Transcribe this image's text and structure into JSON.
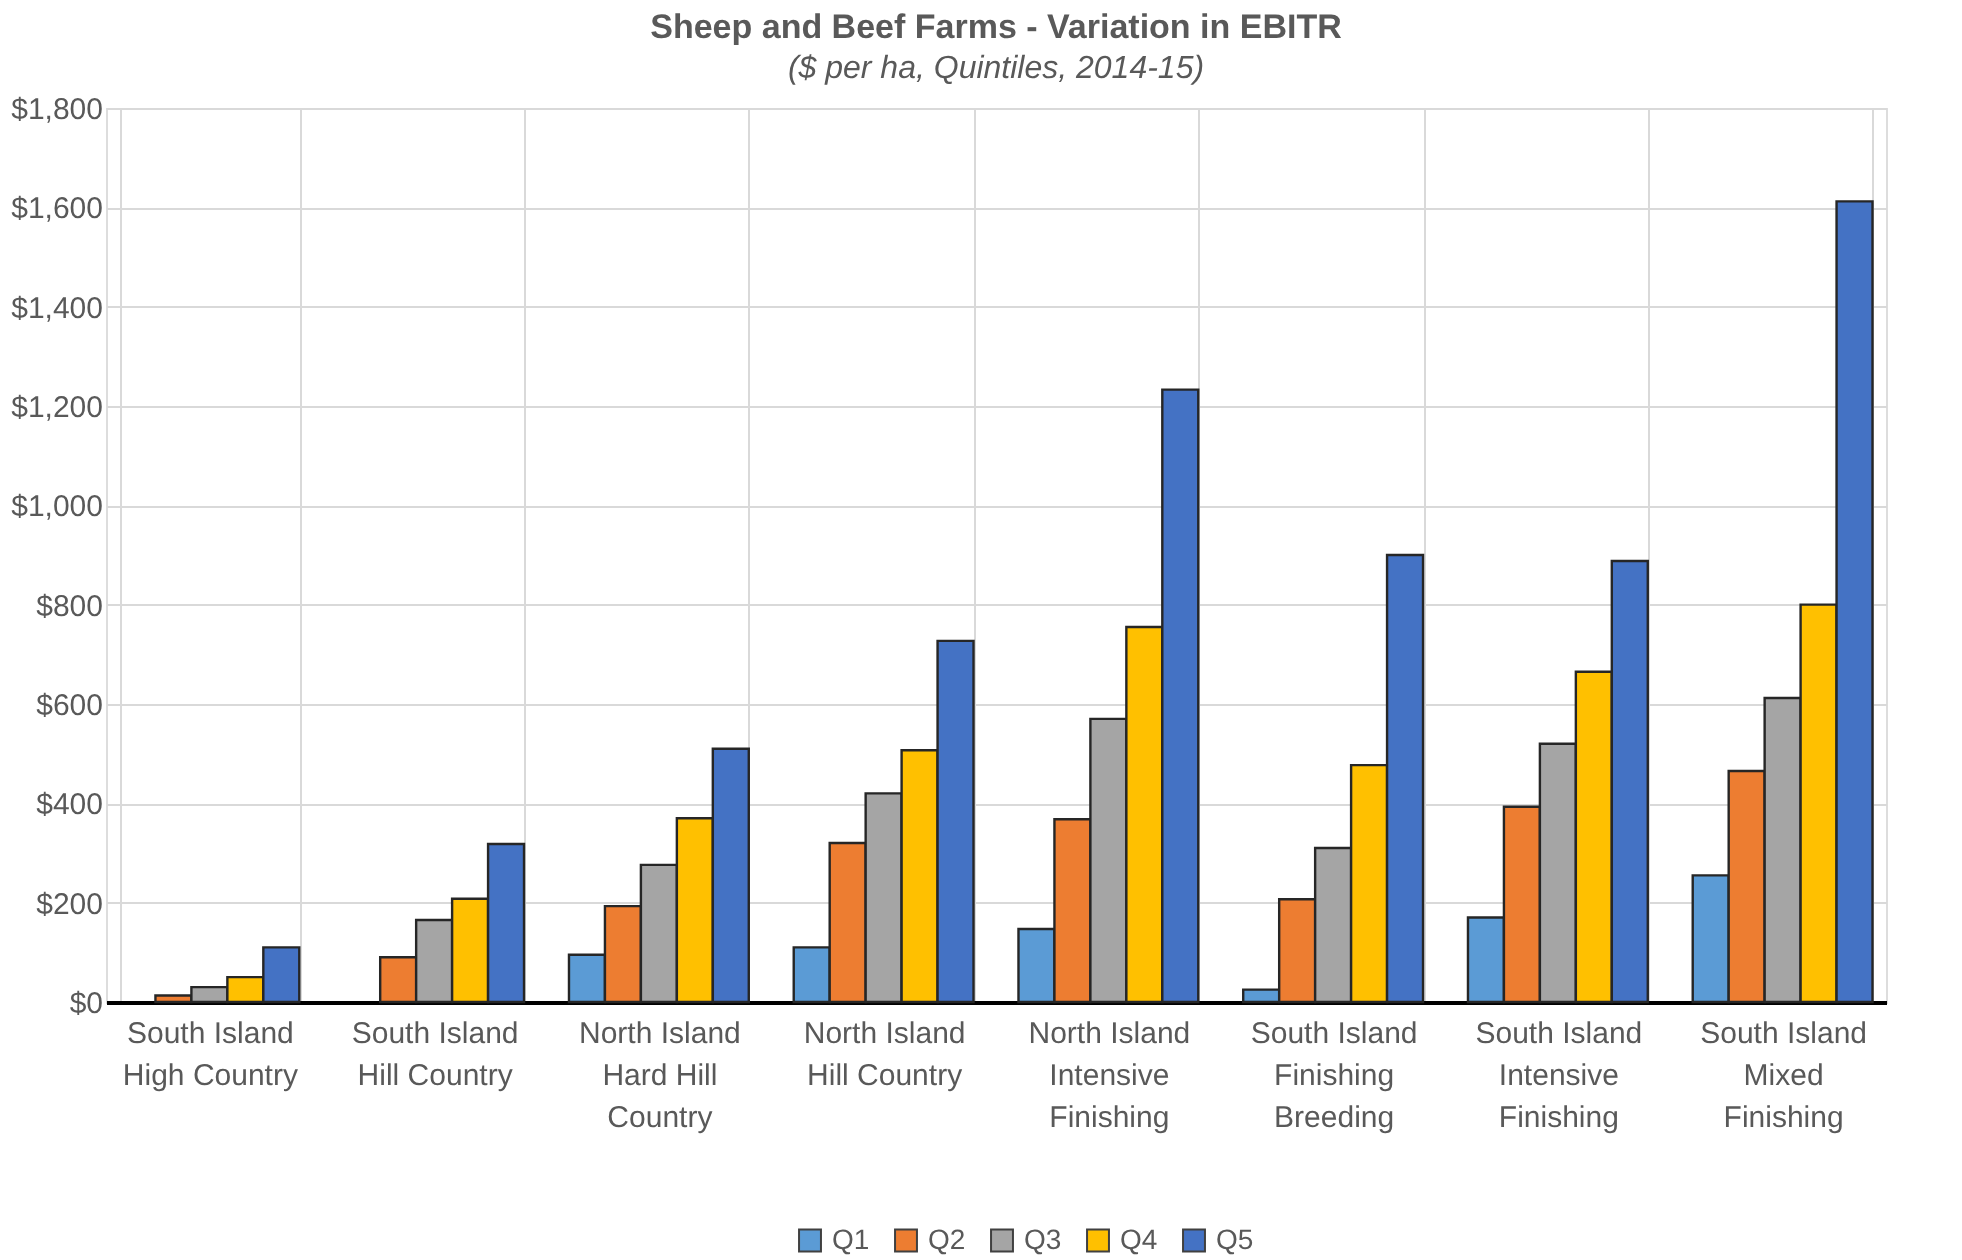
{
  "chart_data": {
    "type": "bar",
    "title": "Sheep and Beef Farms - Variation in EBITR",
    "subtitle": "($ per ha, Quintiles, 2014-15)",
    "categories": [
      "South Island High Country",
      "South Island Hill Country",
      "North Island Hard Hill Country",
      "North Island Hill Country",
      "North Island Intensive Finishing",
      "South Island Finishing Breeding",
      "South Island Intensive Finishing",
      "South Island Mixed Finishing"
    ],
    "series": [
      {
        "name": "Q1",
        "color": "#5b9bd5",
        "values": [
          null,
          null,
          95,
          110,
          147,
          25,
          170,
          255
        ]
      },
      {
        "name": "Q2",
        "color": "#ed7d31",
        "values": [
          13,
          90,
          193,
          320,
          368,
          207,
          393,
          465
        ]
      },
      {
        "name": "Q3",
        "color": "#a5a5a5",
        "values": [
          30,
          165,
          276,
          420,
          570,
          310,
          520,
          612
        ]
      },
      {
        "name": "Q4",
        "color": "#ffc000",
        "values": [
          50,
          208,
          370,
          507,
          755,
          477,
          665,
          800
        ]
      },
      {
        "name": "Q5",
        "color": "#4472c4",
        "values": [
          110,
          318,
          510,
          727,
          1233,
          900,
          888,
          1612
        ]
      }
    ],
    "ylim": [
      0,
      1800
    ],
    "yticks": [
      {
        "value": 0,
        "label": "$0"
      },
      {
        "value": 200,
        "label": "$200"
      },
      {
        "value": 400,
        "label": "$400"
      },
      {
        "value": 600,
        "label": "$600"
      },
      {
        "value": 800,
        "label": "$800"
      },
      {
        "value": 1000,
        "label": "$1,000"
      },
      {
        "value": 1200,
        "label": "$1,200"
      },
      {
        "value": 1400,
        "label": "$1,400"
      },
      {
        "value": 1600,
        "label": "$1,600"
      },
      {
        "value": 1800,
        "label": "$1,800"
      }
    ],
    "grid": true,
    "legend": "bottom"
  }
}
